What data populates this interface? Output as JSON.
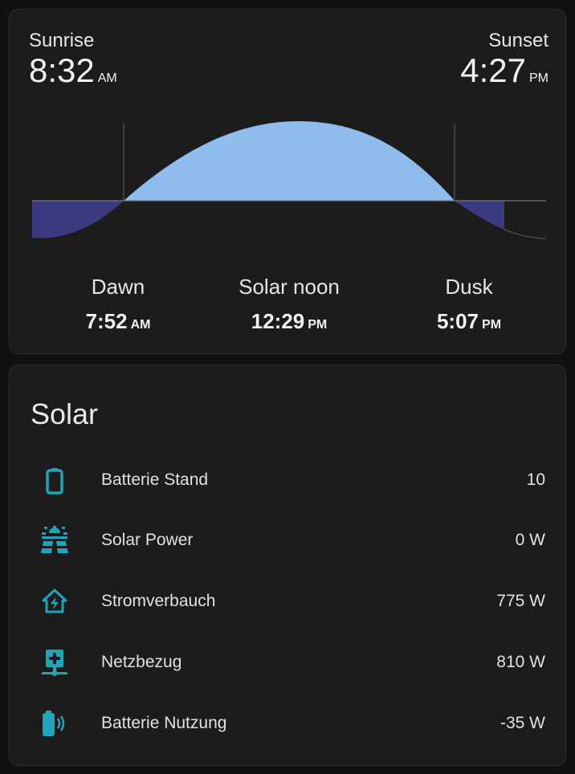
{
  "sun": {
    "sunrise": {
      "label": "Sunrise",
      "time": "8:32",
      "ampm": "AM"
    },
    "sunset": {
      "label": "Sunset",
      "time": "4:27",
      "ampm": "PM"
    },
    "dawn": {
      "label": "Dawn",
      "time": "7:52",
      "ampm": "AM"
    },
    "noon": {
      "label": "Solar noon",
      "time": "12:29",
      "ampm": "PM"
    },
    "dusk": {
      "label": "Dusk",
      "time": "5:07",
      "ampm": "PM"
    }
  },
  "colors": {
    "day": "#8ebcec",
    "night": "#3a3a80",
    "accent": "#1fa4b9",
    "card": "#1c1c1c"
  },
  "solar": {
    "title": "Solar",
    "rows": [
      {
        "icon": "battery-icon",
        "name": "Batterie Stand",
        "value": "10"
      },
      {
        "icon": "solar-power-icon",
        "name": "Solar Power",
        "value": "0 W"
      },
      {
        "icon": "home-lightning-icon",
        "name": "Stromverbauch",
        "value": "775 W"
      },
      {
        "icon": "transmission-tower-icon",
        "name": "Netzbezug",
        "value": "810 W"
      },
      {
        "icon": "battery-charging-wireless-icon",
        "name": "Batterie Nutzung",
        "value": "-35 W"
      }
    ]
  }
}
